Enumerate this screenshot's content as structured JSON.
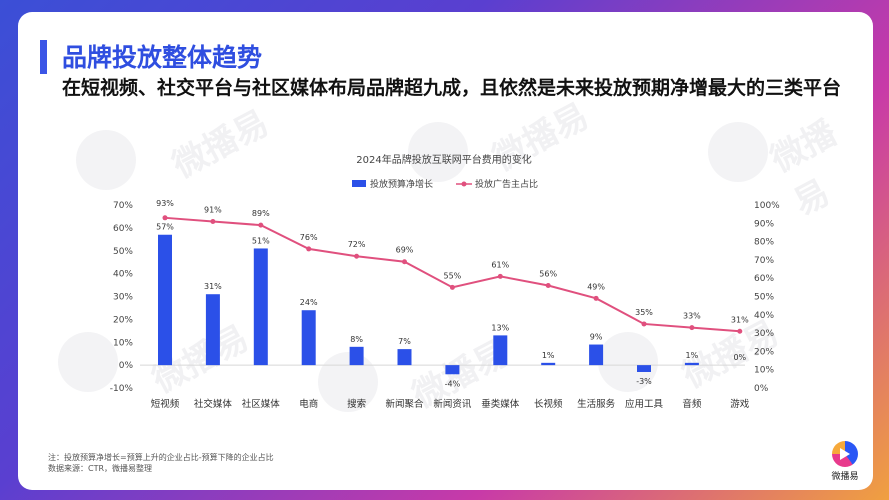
{
  "header": {
    "title": "品牌投放整体趋势",
    "subtitle": "在短视频、社交平台与社区媒体布局品牌超九成，且依然是未来投放预期净增最大的三类平台"
  },
  "watermark": "微播易",
  "chart_data": {
    "type": "bar+line",
    "title": "2024年品牌投放互联网平台费用的变化",
    "categories": [
      "短视频",
      "社交媒体",
      "社区媒体",
      "电商",
      "搜索",
      "新闻聚合",
      "新闻资讯",
      "垂类媒体",
      "长视频",
      "生活服务",
      "应用工具",
      "音频",
      "游戏"
    ],
    "series": [
      {
        "name": "投放预算净增长",
        "type": "bar",
        "axis": "left",
        "color": "#2b50e8",
        "values": [
          57,
          31,
          51,
          24,
          8,
          7,
          -4,
          13,
          1,
          9,
          -3,
          1,
          0
        ],
        "labels": [
          "57%",
          "31%",
          "51%",
          "24%",
          "8%",
          "7%",
          "-4%",
          "13%",
          "1%",
          "9%",
          "-3%",
          "1%",
          "0%"
        ]
      },
      {
        "name": "投放广告主占比",
        "type": "line",
        "axis": "right",
        "color": "#e0507e",
        "values": [
          93,
          91,
          89,
          76,
          72,
          69,
          55,
          61,
          56,
          49,
          35,
          33,
          31
        ],
        "labels": [
          "93%",
          "91%",
          "89%",
          "76%",
          "72%",
          "69%",
          "55%",
          "61%",
          "56%",
          "49%",
          "35%",
          "33%",
          "31%"
        ]
      }
    ],
    "y_left": {
      "min": -10,
      "max": 70,
      "step": 10,
      "ticks": [
        "-10%",
        "0%",
        "10%",
        "20%",
        "30%",
        "40%",
        "50%",
        "60%",
        "70%"
      ]
    },
    "y_right": {
      "min": 0,
      "max": 100,
      "step": 10,
      "ticks": [
        "0%",
        "10%",
        "20%",
        "30%",
        "40%",
        "50%",
        "60%",
        "70%",
        "80%",
        "90%",
        "100%"
      ]
    },
    "legend_position": "top-center"
  },
  "footer": {
    "note": "注：投放预算净增长=预算上升的企业占比-预算下降的企业占比",
    "source": "数据来源：CTR，微播易整理"
  },
  "logo": {
    "text": "微播易"
  }
}
